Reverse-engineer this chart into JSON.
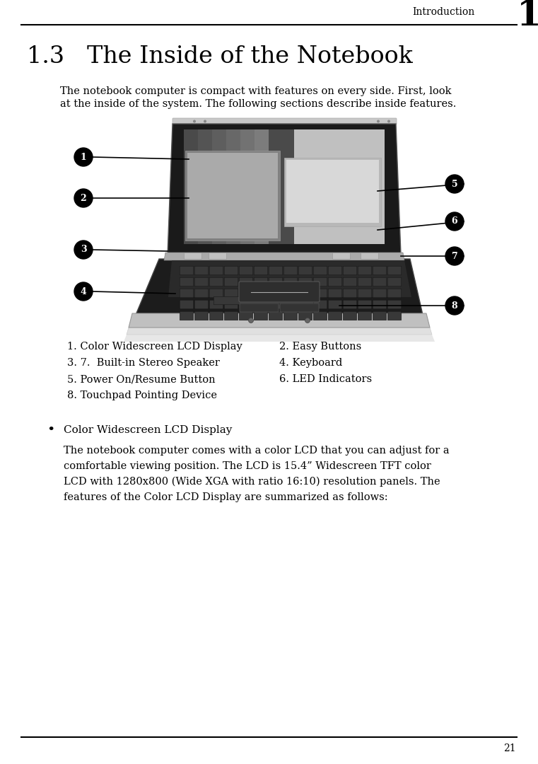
{
  "bg_color": "#ffffff",
  "header_text": "Introduction",
  "header_number": "1",
  "chapter_title": "1.3   The Inside of the Notebook",
  "intro_paragraph": "The notebook computer is compact with features on every side. First, look\nat the inside of the system. The following sections describe inside features.",
  "legend_col1": [
    "1. Color Widescreen LCD Display",
    "3. 7.  Built-in Stereo Speaker",
    "5. Power On/Resume Button",
    "8. Touchpad Pointing Device"
  ],
  "legend_col2": [
    "2. Easy Buttons",
    "4. Keyboard",
    "6. LED Indicators",
    ""
  ],
  "bullet_title": "Color Widescreen LCD Display",
  "bullet_body": "The notebook computer comes with a color LCD that you can adjust for a\ncomfortable viewing position. The LCD is 15.4” Widescreen TFT color\nLCD with 1280x800 (Wide XGA with ratio 16:10) resolution panels. The\nfeatures of the Color LCD Display are summarized as follows:",
  "page_number": "21",
  "font_family": "DejaVu Serif"
}
